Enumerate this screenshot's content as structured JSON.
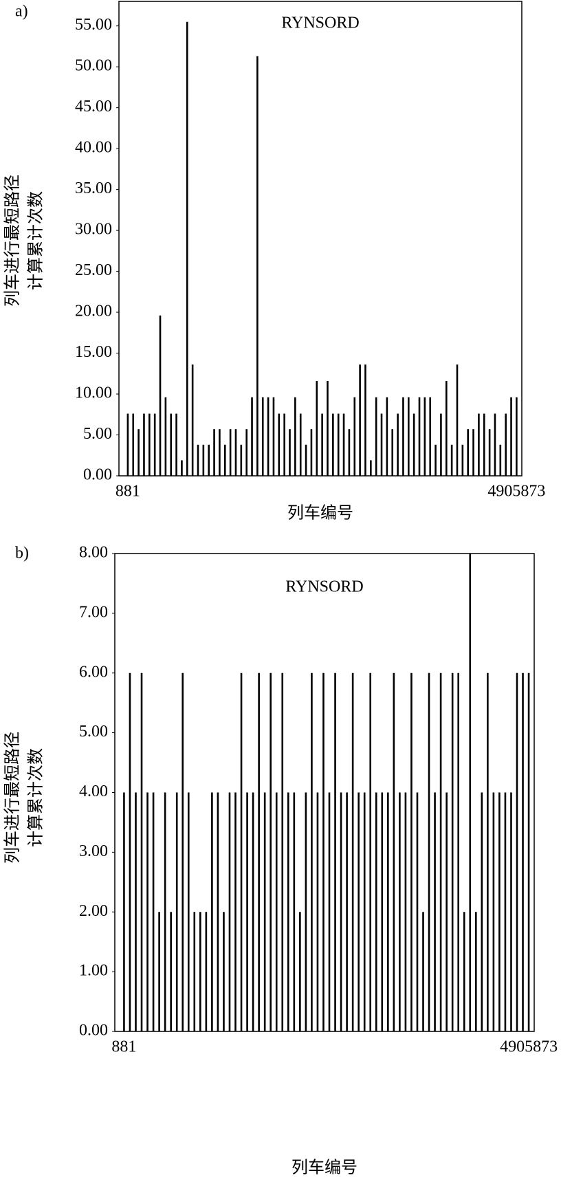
{
  "chart_data": [
    {
      "type": "bar",
      "panel": "a)",
      "title": "RYNSORD",
      "x_label": "列车编号",
      "y_label": [
        "列车进行最短路径",
        "计算累计次数"
      ],
      "categories": [
        "881",
        null,
        null,
        null,
        null,
        null,
        null,
        null,
        null,
        null,
        null,
        null,
        null,
        null,
        null,
        null,
        null,
        null,
        null,
        null,
        null,
        null,
        null,
        null,
        null,
        null,
        null,
        null,
        null,
        null,
        null,
        null,
        null,
        null,
        null,
        null,
        null,
        null,
        null,
        null,
        null,
        null,
        null,
        null,
        null,
        null,
        null,
        null,
        null,
        null,
        null,
        null,
        null,
        null,
        null,
        null,
        null,
        null,
        null,
        null,
        null,
        null,
        null,
        null,
        null,
        null,
        null,
        null,
        null,
        null,
        null,
        null,
        "4905873"
      ],
      "values": [
        7.6,
        7.6,
        5.7,
        7.6,
        7.6,
        7.6,
        19.6,
        9.6,
        7.6,
        7.6,
        1.9,
        55.5,
        13.6,
        3.8,
        3.8,
        3.8,
        5.7,
        5.7,
        3.8,
        5.7,
        5.7,
        3.8,
        5.7,
        9.6,
        51.3,
        9.6,
        9.6,
        9.6,
        7.6,
        7.6,
        5.7,
        9.6,
        7.6,
        3.8,
        5.7,
        11.6,
        7.6,
        11.6,
        7.6,
        7.6,
        7.6,
        5.7,
        9.6,
        13.6,
        13.6,
        1.9,
        9.6,
        7.6,
        9.6,
        5.7,
        7.6,
        9.6,
        9.6,
        7.6,
        9.6,
        9.6,
        9.6,
        3.8,
        7.6,
        11.6,
        3.8,
        13.6,
        3.8,
        5.7,
        5.7,
        7.6,
        7.6,
        5.7,
        7.6,
        3.8,
        7.6,
        9.6,
        9.6
      ],
      "color": "#000000",
      "ylim": [
        0,
        58
      ],
      "yticks": [
        {
          "value": 0,
          "label": "0.00"
        },
        {
          "value": 5,
          "label": "5.00"
        },
        {
          "value": 10,
          "label": "10.00"
        },
        {
          "value": 15,
          "label": "15.00"
        },
        {
          "value": 20,
          "label": "20.00"
        },
        {
          "value": 25,
          "label": "25.00"
        },
        {
          "value": 30,
          "label": "30.00"
        },
        {
          "value": 35,
          "label": "35.00"
        },
        {
          "value": 40,
          "label": "40.00"
        },
        {
          "value": 45,
          "label": "45.00"
        },
        {
          "value": 50,
          "label": "50.00"
        },
        {
          "value": 55,
          "label": "55.00"
        }
      ],
      "grid": false
    },
    {
      "type": "bar",
      "panel": "b)",
      "title": "RYNSORD",
      "x_label": "列车编号",
      "y_label": [
        "列车进行最短路径",
        "计算累计次数"
      ],
      "categories": [
        "881",
        null,
        null,
        null,
        null,
        null,
        null,
        null,
        null,
        null,
        null,
        null,
        null,
        null,
        null,
        null,
        null,
        null,
        null,
        null,
        null,
        null,
        null,
        null,
        null,
        null,
        null,
        null,
        null,
        null,
        null,
        null,
        null,
        null,
        null,
        null,
        null,
        null,
        null,
        null,
        null,
        null,
        null,
        null,
        null,
        null,
        null,
        null,
        null,
        null,
        null,
        null,
        null,
        null,
        null,
        null,
        null,
        null,
        null,
        null,
        null,
        null,
        null,
        null,
        null,
        null,
        null,
        null,
        null,
        "4905873"
      ],
      "values": [
        4,
        6,
        4,
        6,
        4,
        4,
        2,
        4,
        2,
        4,
        6,
        4,
        2,
        2,
        2,
        4,
        4,
        2,
        4,
        4,
        6,
        4,
        4,
        6,
        4,
        6,
        4,
        6,
        4,
        4,
        2,
        4,
        6,
        4,
        6,
        4,
        6,
        4,
        4,
        6,
        4,
        4,
        6,
        4,
        4,
        4,
        6,
        4,
        4,
        6,
        4,
        2,
        6,
        4,
        6,
        4,
        6,
        6,
        2,
        8,
        2,
        4,
        6,
        4,
        4,
        4,
        4,
        6,
        6,
        6
      ],
      "color": "#000000",
      "ylim": [
        0,
        8
      ],
      "yticks": [
        {
          "value": 0,
          "label": "0.00"
        },
        {
          "value": 1,
          "label": "1.00"
        },
        {
          "value": 2,
          "label": "2.00"
        },
        {
          "value": 3,
          "label": "3.00"
        },
        {
          "value": 4,
          "label": "4.00"
        },
        {
          "value": 5,
          "label": "5.00"
        },
        {
          "value": 6,
          "label": "6.00"
        },
        {
          "value": 7,
          "label": "7.00"
        },
        {
          "value": 8,
          "label": "8.00"
        }
      ],
      "grid": false
    }
  ]
}
